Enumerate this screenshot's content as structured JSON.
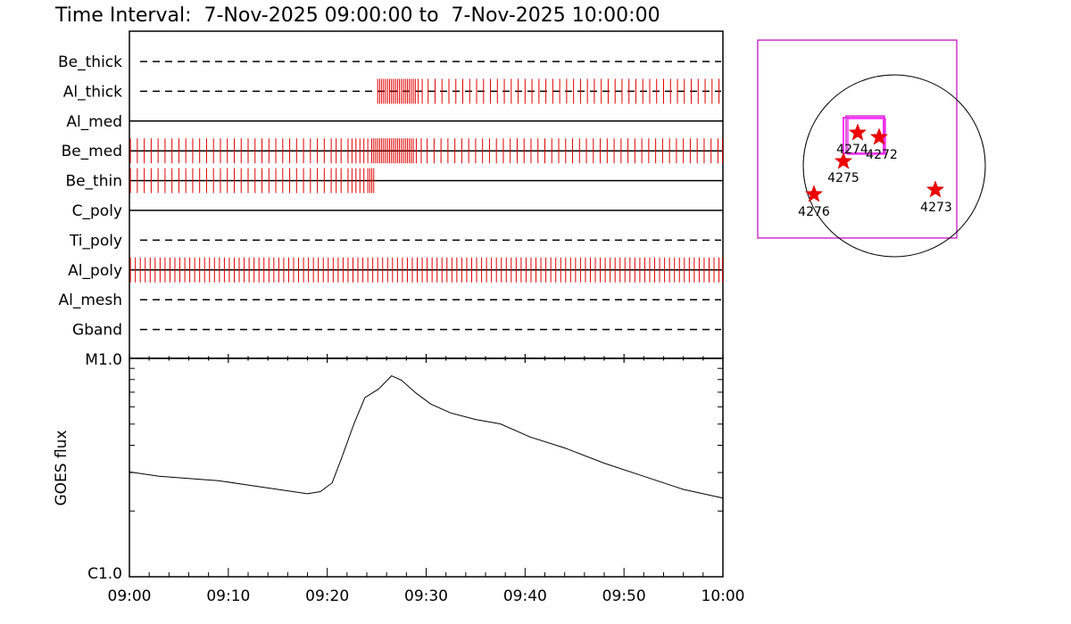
{
  "chart_data": {
    "type": "line",
    "title": "Time Interval:  7-Nov-2025 09:00:00 to  7-Nov-2025 10:00:00",
    "time_range": [
      "09:00",
      "10:00"
    ],
    "xlabel": "",
    "x_ticks": [
      "09:00",
      "09:10",
      "09:20",
      "09:30",
      "09:40",
      "09:50",
      "10:00"
    ],
    "filters": [
      {
        "name": "Be_thick",
        "style": "dashed",
        "exposures_min": []
      },
      {
        "name": "Al_thick",
        "style": "dashed",
        "exposures_min": [
          25.1,
          25.3,
          25.5,
          25.7,
          25.9,
          26.1,
          26.3,
          26.5,
          26.7,
          26.9,
          27.1,
          27.3,
          27.5,
          27.7,
          27.9,
          28.1,
          28.3,
          28.5,
          28.7,
          28.9,
          29.2,
          29.6,
          30.2,
          30.9,
          31.6,
          32.3,
          33.0,
          33.7,
          34.4,
          35.1,
          35.8,
          36.5,
          37.2,
          37.9,
          38.6,
          39.3,
          40.0,
          40.7,
          41.4,
          42.1,
          42.8,
          43.5,
          44.2,
          44.9,
          45.6,
          46.3,
          47.0,
          47.7,
          48.4,
          49.1,
          49.8,
          50.5,
          51.2,
          51.9,
          52.6,
          53.3,
          54.0,
          54.7,
          55.4,
          56.1,
          56.8,
          57.5,
          58.2,
          58.9,
          59.6
        ]
      },
      {
        "name": "Al_med",
        "style": "solid",
        "exposures_min": []
      },
      {
        "name": "Be_med",
        "style": "solid",
        "exposures_min": [
          0.1,
          0.8,
          1.5,
          2.2,
          2.9,
          3.6,
          4.3,
          5.0,
          5.7,
          6.4,
          7.1,
          7.8,
          8.5,
          9.2,
          9.9,
          10.6,
          11.3,
          12.0,
          12.7,
          13.4,
          14.1,
          14.8,
          15.5,
          16.2,
          16.9,
          17.6,
          18.3,
          19.0,
          19.7,
          20.4,
          20.9,
          21.4,
          22.1,
          22.5,
          22.9,
          23.3,
          23.7,
          24.1,
          24.5,
          24.7,
          24.9,
          25.1,
          25.3,
          25.5,
          25.7,
          25.9,
          26.1,
          26.3,
          26.5,
          26.7,
          26.9,
          27.1,
          27.3,
          27.5,
          27.7,
          27.9,
          28.1,
          28.3,
          28.5,
          28.7,
          29.0,
          29.5,
          30.1,
          30.8,
          31.5,
          32.2,
          32.9,
          33.6,
          34.3,
          35.0,
          35.7,
          36.4,
          37.1,
          37.8,
          38.5,
          39.2,
          39.9,
          40.6,
          41.3,
          42.0,
          42.7,
          43.4,
          44.1,
          44.8,
          45.5,
          46.2,
          46.9,
          47.6,
          48.3,
          49.0,
          49.7,
          50.4,
          51.1,
          51.8,
          52.5,
          53.2,
          53.9,
          54.6,
          55.3,
          56.0,
          56.7,
          57.4,
          58.1,
          58.8,
          59.5,
          59.95
        ]
      },
      {
        "name": "Be_thin",
        "style": "solid",
        "exposures_min": [
          0.1,
          0.8,
          1.5,
          2.2,
          2.9,
          3.6,
          4.3,
          5.0,
          5.7,
          6.4,
          7.1,
          7.8,
          8.5,
          9.2,
          9.9,
          10.6,
          11.3,
          12.0,
          12.7,
          13.4,
          14.1,
          14.8,
          15.5,
          16.2,
          16.9,
          17.6,
          18.3,
          19.0,
          19.7,
          20.4,
          20.9,
          21.4,
          22.1,
          22.5,
          22.9,
          23.3,
          23.7,
          24.1,
          24.3,
          24.5,
          24.7
        ]
      },
      {
        "name": "C_poly",
        "style": "solid",
        "exposures_min": []
      },
      {
        "name": "Ti_poly",
        "style": "dashed",
        "exposures_min": []
      },
      {
        "name": "Al_poly",
        "style": "solid",
        "exposures_min": [
          0.1,
          0.6,
          1.1,
          1.6,
          2.1,
          2.6,
          3.1,
          3.6,
          4.1,
          4.6,
          5.1,
          5.6,
          6.1,
          6.6,
          7.1,
          7.6,
          8.1,
          8.6,
          9.1,
          9.6,
          10.1,
          10.6,
          11.1,
          11.6,
          12.1,
          12.6,
          13.1,
          13.6,
          14.1,
          14.6,
          15.1,
          15.6,
          16.1,
          16.6,
          17.1,
          17.6,
          18.1,
          18.6,
          19.1,
          19.6,
          20.1,
          20.6,
          21.1,
          21.6,
          22.1,
          22.6,
          23.1,
          23.6,
          24.1,
          24.6,
          25.1,
          25.6,
          26.1,
          26.6,
          27.1,
          27.6,
          28.1,
          28.6,
          29.1,
          29.6,
          30.1,
          30.6,
          31.1,
          31.6,
          32.1,
          32.6,
          33.1,
          33.6,
          34.1,
          34.6,
          35.1,
          35.6,
          36.1,
          36.6,
          37.1,
          37.6,
          38.1,
          38.6,
          39.1,
          39.6,
          40.1,
          40.6,
          41.1,
          41.6,
          42.1,
          42.6,
          43.1,
          43.6,
          44.1,
          44.6,
          45.1,
          45.6,
          46.1,
          46.6,
          47.1,
          47.6,
          48.1,
          48.6,
          49.1,
          49.6,
          50.1,
          50.6,
          51.1,
          51.6,
          52.1,
          52.6,
          53.1,
          53.6,
          54.1,
          54.6,
          55.1,
          55.6,
          56.1,
          56.6,
          57.1,
          57.6,
          58.1,
          58.6,
          59.1,
          59.6,
          59.95
        ]
      },
      {
        "name": "Al_mesh",
        "style": "dashed",
        "exposures_min": []
      },
      {
        "name": "Gband",
        "style": "dashed",
        "exposures_min": []
      }
    ],
    "goes": {
      "ylabel": "GOES flux",
      "y_tick_labels": [
        "M1.0",
        "C1.0"
      ],
      "ylim": [
        "C1.0",
        "M1.0"
      ],
      "scale": "log",
      "series": [
        {
          "values_log_fraction": [
            [
              0,
              0.48
            ],
            [
              3,
              0.46
            ],
            [
              6,
              0.45
            ],
            [
              9,
              0.44
            ],
            [
              12,
              0.42
            ],
            [
              15,
              0.4
            ],
            [
              18,
              0.38
            ],
            [
              19.3,
              0.39
            ],
            [
              20.5,
              0.43
            ],
            [
              21.5,
              0.55
            ],
            [
              22.7,
              0.7
            ],
            [
              23.8,
              0.82
            ],
            [
              25.2,
              0.86
            ],
            [
              26.5,
              0.92
            ],
            [
              27.5,
              0.9
            ],
            [
              29,
              0.84
            ],
            [
              30.5,
              0.79
            ],
            [
              32.5,
              0.75
            ],
            [
              35,
              0.72
            ],
            [
              37.5,
              0.7
            ],
            [
              40.5,
              0.64
            ],
            [
              44,
              0.59
            ],
            [
              48,
              0.52
            ],
            [
              52,
              0.46
            ],
            [
              56,
              0.4
            ],
            [
              60,
              0.36
            ]
          ]
        }
      ]
    },
    "context_map": {
      "active_regions": [
        "4274",
        "4272",
        "4275",
        "4276",
        "4273"
      ]
    }
  }
}
